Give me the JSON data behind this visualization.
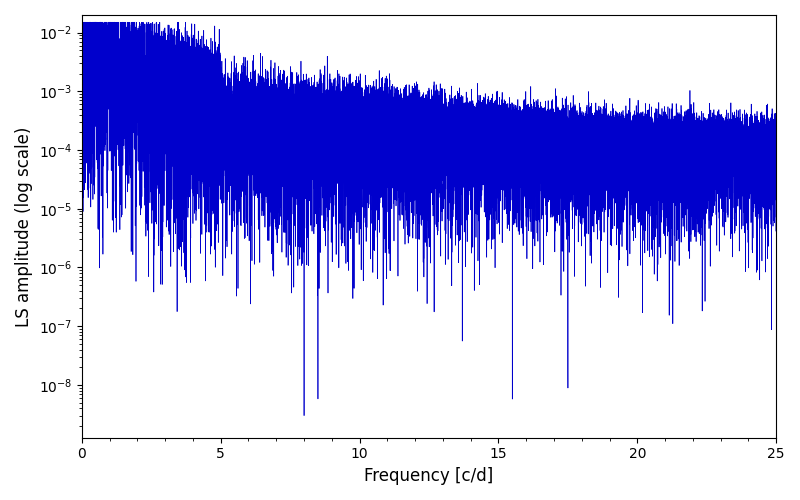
{
  "title": "",
  "xlabel": "Frequency [c/d]",
  "ylabel": "LS amplitude (log scale)",
  "xlim": [
    0,
    25
  ],
  "ylim_log": [
    -8.9,
    -1.7
  ],
  "line_color": "#0000cc",
  "line_width": 0.5,
  "yscale": "log",
  "n_points": 15000,
  "seed": 7,
  "figsize": [
    8.0,
    5.0
  ],
  "dpi": 100
}
